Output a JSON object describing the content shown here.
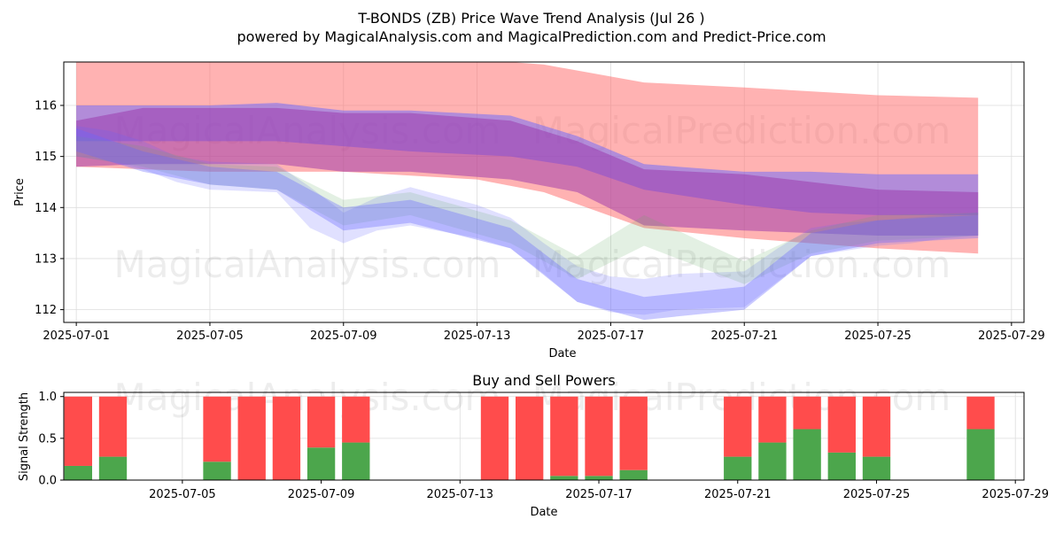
{
  "title": "T-BONDS (ZB) Price Wave Trend Analysis (Jul 26 )",
  "subtitle": "powered by MagicalAnalysis.com and MagicalPrediction.com and Predict-Price.com",
  "watermarks": [
    "MagicalAnalysis.com",
    "MagicalPrediction.com"
  ],
  "colors": {
    "red_band": "#ff6666",
    "blue_band": "#6666ff",
    "green_band": "#66aa66",
    "buy_bar": "#4ca64c",
    "sell_bar": "#ff4c4c"
  },
  "chart_data": [
    {
      "type": "area",
      "xlabel": "Date",
      "ylabel": "Price",
      "x_domain": [
        "2025-06-30T15:00",
        "2025-07-29T09:00"
      ],
      "ylim": [
        111.75,
        116.85
      ],
      "x_ticks": [
        "2025-07-01",
        "2025-07-05",
        "2025-07-09",
        "2025-07-13",
        "2025-07-17",
        "2025-07-21",
        "2025-07-25",
        "2025-07-29"
      ],
      "y_ticks": [
        112,
        113,
        114,
        115,
        116
      ],
      "grid": true,
      "series": [
        {
          "color": "red",
          "opacity": 0.5,
          "x": [
            "2025-07-01",
            "2025-07-05",
            "2025-07-09",
            "2025-07-13",
            "2025-07-15",
            "2025-07-18",
            "2025-07-21",
            "2025-07-25",
            "2025-07-28"
          ],
          "upper": [
            116.9,
            116.9,
            116.9,
            116.9,
            116.8,
            116.45,
            116.35,
            116.2,
            116.15
          ],
          "lower": [
            114.8,
            114.7,
            114.7,
            114.55,
            114.3,
            113.6,
            113.4,
            113.2,
            113.1
          ]
        },
        {
          "color": "blue",
          "opacity": 0.5,
          "x": [
            "2025-07-01",
            "2025-07-05",
            "2025-07-07",
            "2025-07-09",
            "2025-07-11",
            "2025-07-14",
            "2025-07-16",
            "2025-07-18",
            "2025-07-21",
            "2025-07-23",
            "2025-07-25",
            "2025-07-28"
          ],
          "upper": [
            116.0,
            116.0,
            116.05,
            115.9,
            115.9,
            115.8,
            115.4,
            114.85,
            114.7,
            114.7,
            114.65,
            114.65
          ],
          "lower": [
            115.3,
            115.3,
            115.3,
            115.2,
            115.1,
            115.0,
            114.8,
            114.35,
            114.05,
            113.9,
            113.85,
            113.85
          ]
        },
        {
          "color": "purple",
          "opacity": 0.5,
          "x": [
            "2025-07-01",
            "2025-07-03",
            "2025-07-05",
            "2025-07-07",
            "2025-07-09",
            "2025-07-11",
            "2025-07-14",
            "2025-07-16",
            "2025-07-18",
            "2025-07-21",
            "2025-07-23",
            "2025-07-25",
            "2025-07-28"
          ],
          "upper": [
            115.7,
            115.95,
            115.95,
            115.95,
            115.85,
            115.85,
            115.7,
            115.3,
            114.75,
            114.65,
            114.5,
            114.35,
            114.3
          ],
          "lower": [
            114.8,
            114.85,
            114.85,
            114.85,
            114.7,
            114.7,
            114.55,
            114.3,
            113.65,
            113.55,
            113.5,
            113.45,
            113.45
          ]
        },
        {
          "color": "blue",
          "opacity": 0.2,
          "x": [
            "2025-07-01",
            "2025-07-02",
            "2025-07-03",
            "2025-07-04",
            "2025-07-05",
            "2025-07-07",
            "2025-07-08",
            "2025-07-09",
            "2025-07-10",
            "2025-07-11",
            "2025-07-13",
            "2025-07-14",
            "2025-07-15",
            "2025-07-16",
            "2025-07-17",
            "2025-07-18",
            "2025-07-19",
            "2025-07-21",
            "2025-07-22",
            "2025-07-23",
            "2025-07-24",
            "2025-07-25",
            "2025-07-26",
            "2025-07-27",
            "2025-07-28"
          ],
          "upper": [
            115.6,
            115.5,
            115.3,
            115.0,
            114.9,
            114.85,
            114.4,
            113.9,
            114.2,
            114.4,
            114.05,
            113.8,
            113.3,
            112.85,
            112.65,
            112.6,
            112.7,
            112.75,
            113.2,
            113.6,
            113.7,
            113.75,
            113.8,
            113.85,
            113.9
          ],
          "lower": [
            115.0,
            114.9,
            114.75,
            114.5,
            114.35,
            114.3,
            113.6,
            113.3,
            113.55,
            113.65,
            113.4,
            113.2,
            112.7,
            112.15,
            111.95,
            111.9,
            112.0,
            112.05,
            112.55,
            113.05,
            113.15,
            113.25,
            113.3,
            113.4,
            113.45
          ]
        },
        {
          "color": "green",
          "opacity": 0.18,
          "x": [
            "2025-07-01",
            "2025-07-03",
            "2025-07-05",
            "2025-07-07",
            "2025-07-09",
            "2025-07-11",
            "2025-07-14",
            "2025-07-16",
            "2025-07-18",
            "2025-07-21",
            "2025-07-23",
            "2025-07-25",
            "2025-07-28"
          ],
          "upper": [
            115.4,
            115.2,
            114.85,
            114.8,
            114.15,
            114.3,
            113.75,
            113.05,
            113.85,
            112.95,
            113.55,
            113.85,
            113.9
          ],
          "lower": [
            115.0,
            114.8,
            114.45,
            114.35,
            113.65,
            113.85,
            113.3,
            112.6,
            113.25,
            112.5,
            113.1,
            113.35,
            113.45
          ]
        },
        {
          "color": "blue",
          "opacity": 0.35,
          "x": [
            "2025-07-01",
            "2025-07-03",
            "2025-07-05",
            "2025-07-07",
            "2025-07-09",
            "2025-07-11",
            "2025-07-14",
            "2025-07-16",
            "2025-07-18",
            "2025-07-21",
            "2025-07-23",
            "2025-07-25",
            "2025-07-28"
          ],
          "upper": [
            115.55,
            115.1,
            114.8,
            114.7,
            114.0,
            114.15,
            113.6,
            112.6,
            112.25,
            112.45,
            113.5,
            113.75,
            113.85
          ],
          "lower": [
            115.1,
            114.7,
            114.45,
            114.35,
            113.55,
            113.7,
            113.2,
            112.15,
            111.8,
            112.0,
            113.05,
            113.3,
            113.4
          ]
        }
      ]
    },
    {
      "type": "bar",
      "title": "Buy and Sell Powers",
      "xlabel": "Date",
      "ylabel": "Signal Strength",
      "ylim": [
        0,
        1.05
      ],
      "y_ticks": [
        0.0,
        0.5,
        1.0
      ],
      "x_ticks": [
        "2025-07-05",
        "2025-07-09",
        "2025-07-13",
        "2025-07-17",
        "2025-07-21",
        "2025-07-25",
        "2025-07-29"
      ],
      "grid": true,
      "categories": [
        "2025-07-02",
        "2025-07-03",
        "2025-07-06",
        "2025-07-07",
        "2025-07-08",
        "2025-07-09",
        "2025-07-10",
        "2025-07-14",
        "2025-07-15",
        "2025-07-16",
        "2025-07-17",
        "2025-07-18",
        "2025-07-21",
        "2025-07-22",
        "2025-07-23",
        "2025-07-24",
        "2025-07-25",
        "2025-07-28"
      ],
      "series": [
        {
          "name": "buy",
          "values": [
            0.17,
            0.28,
            0.22,
            0.0,
            0.0,
            0.39,
            0.45,
            0.0,
            0.0,
            0.05,
            0.05,
            0.12,
            0.28,
            0.45,
            0.61,
            0.33,
            0.28,
            0.61
          ]
        },
        {
          "name": "sell",
          "values": [
            0.83,
            0.72,
            0.78,
            1.0,
            1.0,
            0.61,
            0.55,
            1.0,
            1.0,
            0.95,
            0.95,
            0.88,
            0.72,
            0.55,
            0.39,
            0.67,
            0.72,
            0.39
          ]
        }
      ]
    }
  ]
}
